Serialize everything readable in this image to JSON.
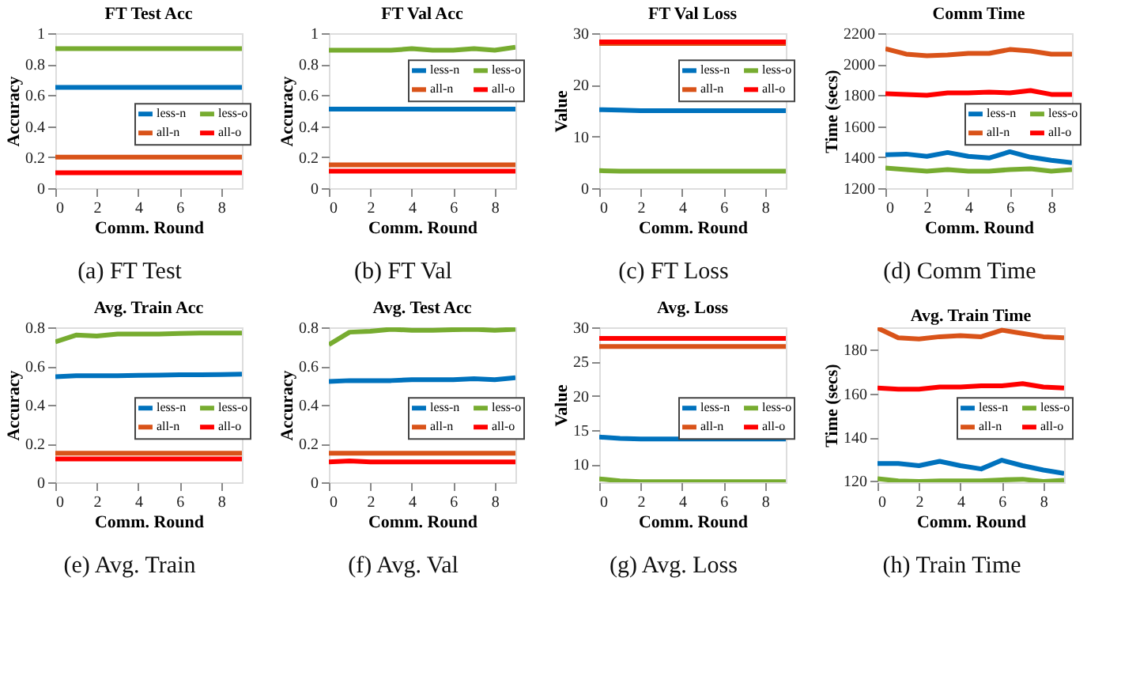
{
  "chart_data": [
    {
      "type": "line",
      "title": "FT Test Acc",
      "xlabel": "Comm. Round",
      "ylabel": "Accuracy",
      "annotations": [
        "(a) FT Test"
      ],
      "legend": "right",
      "x": [
        0,
        1,
        2,
        3,
        4,
        5,
        6,
        7,
        8,
        9
      ],
      "xlim": [
        0,
        9
      ],
      "xticks": [
        0,
        2,
        4,
        6,
        8
      ],
      "ylim": [
        0,
        1
      ],
      "yticks": [
        0,
        0.2,
        0.4,
        0.6,
        0.8,
        1
      ],
      "series": [
        {
          "name": "less-n",
          "color": "#0072bd",
          "values": [
            0.65,
            0.65,
            0.65,
            0.65,
            0.65,
            0.65,
            0.65,
            0.65,
            0.65,
            0.65
          ]
        },
        {
          "name": "less-o",
          "color": "#77ac30",
          "values": [
            0.9,
            0.9,
            0.9,
            0.9,
            0.9,
            0.9,
            0.9,
            0.9,
            0.9,
            0.9
          ]
        },
        {
          "name": "all-n",
          "color": "#d95319",
          "values": [
            0.2,
            0.2,
            0.2,
            0.2,
            0.2,
            0.2,
            0.2,
            0.2,
            0.2,
            0.2
          ]
        },
        {
          "name": "all-o",
          "color": "#ff0000",
          "values": [
            0.1,
            0.1,
            0.1,
            0.1,
            0.1,
            0.1,
            0.1,
            0.1,
            0.1,
            0.1
          ]
        }
      ]
    },
    {
      "type": "line",
      "title": "FT Val Acc",
      "xlabel": "Comm. Round",
      "ylabel": "Accuracy",
      "annotations": [
        "(b) FT Val"
      ],
      "legend": "top right",
      "x": [
        0,
        1,
        2,
        3,
        4,
        5,
        6,
        7,
        8,
        9
      ],
      "xlim": [
        0,
        9
      ],
      "xticks": [
        0,
        2,
        4,
        6,
        8
      ],
      "ylim": [
        0,
        1
      ],
      "yticks": [
        0,
        0.2,
        0.4,
        0.6,
        0.8,
        1
      ],
      "series": [
        {
          "name": "less-n",
          "color": "#0072bd",
          "values": [
            0.51,
            0.51,
            0.51,
            0.51,
            0.51,
            0.51,
            0.51,
            0.51,
            0.51,
            0.51
          ]
        },
        {
          "name": "less-o",
          "color": "#77ac30",
          "values": [
            0.89,
            0.89,
            0.89,
            0.89,
            0.9,
            0.89,
            0.89,
            0.9,
            0.89,
            0.91
          ]
        },
        {
          "name": "all-n",
          "color": "#d95319",
          "values": [
            0.15,
            0.15,
            0.15,
            0.15,
            0.15,
            0.15,
            0.15,
            0.15,
            0.15,
            0.15
          ]
        },
        {
          "name": "all-o",
          "color": "#ff0000",
          "values": [
            0.11,
            0.11,
            0.11,
            0.11,
            0.11,
            0.11,
            0.11,
            0.11,
            0.11,
            0.11
          ]
        }
      ]
    },
    {
      "type": "line",
      "title": "FT Val Loss",
      "xlabel": "Comm. Round",
      "ylabel": "Value",
      "annotations": [
        "(c) FT Loss"
      ],
      "legend": "top right",
      "x": [
        0,
        1,
        2,
        3,
        4,
        5,
        6,
        7,
        8,
        9
      ],
      "xlim": [
        0,
        9
      ],
      "xticks": [
        0,
        2,
        4,
        6,
        8
      ],
      "ylim": [
        0,
        30
      ],
      "yticks": [
        0,
        10,
        20,
        30
      ],
      "series": [
        {
          "name": "less-n",
          "color": "#0072bd",
          "values": [
            15.2,
            15.1,
            15,
            15,
            15,
            15,
            15,
            15,
            15,
            15
          ]
        },
        {
          "name": "less-o",
          "color": "#77ac30",
          "values": [
            3.4,
            3.3,
            3.3,
            3.3,
            3.3,
            3.3,
            3.3,
            3.3,
            3.3,
            3.3
          ]
        },
        {
          "name": "all-n",
          "color": "#d95319",
          "values": [
            28,
            28,
            28,
            28,
            28,
            28,
            28,
            28,
            28,
            28
          ]
        },
        {
          "name": "all-o",
          "color": "#ff0000",
          "values": [
            28.3,
            28.3,
            28.3,
            28.3,
            28.3,
            28.3,
            28.3,
            28.3,
            28.3,
            28.3
          ]
        }
      ]
    },
    {
      "type": "line",
      "title": "Comm Time",
      "xlabel": "Comm. Round",
      "ylabel": "Time (secs)",
      "annotations": [
        "(d) Comm Time"
      ],
      "legend": "right",
      "x": [
        0,
        1,
        2,
        3,
        4,
        5,
        6,
        7,
        8,
        9
      ],
      "xlim": [
        0,
        9
      ],
      "xticks": [
        0,
        2,
        4,
        6,
        8
      ],
      "ylim": [
        1200,
        2200
      ],
      "yticks": [
        1200,
        1400,
        1600,
        1800,
        2000,
        2200
      ],
      "series": [
        {
          "name": "less-n",
          "color": "#0072bd",
          "values": [
            1415,
            1420,
            1405,
            1430,
            1405,
            1395,
            1435,
            1400,
            1380,
            1365
          ]
        },
        {
          "name": "less-o",
          "color": "#77ac30",
          "values": [
            1330,
            1320,
            1310,
            1320,
            1310,
            1310,
            1320,
            1325,
            1310,
            1320
          ]
        },
        {
          "name": "all-n",
          "color": "#d95319",
          "values": [
            2100,
            2065,
            2055,
            2060,
            2070,
            2070,
            2095,
            2085,
            2065,
            2065
          ]
        },
        {
          "name": "all-o",
          "color": "#ff0000",
          "values": [
            1810,
            1805,
            1800,
            1815,
            1815,
            1820,
            1815,
            1830,
            1805,
            1805
          ]
        }
      ]
    },
    {
      "type": "line",
      "title": "Avg. Train Acc",
      "xlabel": "Comm. Round",
      "ylabel": "Accuracy",
      "annotations": [
        "(e) Avg. Train"
      ],
      "legend": "right",
      "x": [
        0,
        1,
        2,
        3,
        4,
        5,
        6,
        7,
        8,
        9
      ],
      "xlim": [
        0,
        9
      ],
      "xticks": [
        0,
        2,
        4,
        6,
        8
      ],
      "ylim": [
        0,
        0.8
      ],
      "yticks": [
        0,
        0.2,
        0.4,
        0.6,
        0.8
      ],
      "series": [
        {
          "name": "less-n",
          "color": "#0072bd",
          "values": [
            0.545,
            0.55,
            0.55,
            0.55,
            0.552,
            0.553,
            0.555,
            0.555,
            0.556,
            0.558
          ]
        },
        {
          "name": "less-o",
          "color": "#77ac30",
          "values": [
            0.725,
            0.76,
            0.755,
            0.765,
            0.765,
            0.765,
            0.768,
            0.77,
            0.77,
            0.77
          ]
        },
        {
          "name": "all-n",
          "color": "#d95319",
          "values": [
            0.15,
            0.15,
            0.15,
            0.15,
            0.15,
            0.15,
            0.15,
            0.15,
            0.15,
            0.15
          ]
        },
        {
          "name": "all-o",
          "color": "#ff0000",
          "values": [
            0.12,
            0.12,
            0.12,
            0.12,
            0.12,
            0.12,
            0.12,
            0.12,
            0.12,
            0.12
          ]
        }
      ]
    },
    {
      "type": "line",
      "title": "Avg. Test Acc",
      "xlabel": "Comm. Round",
      "ylabel": "Accuracy",
      "annotations": [
        "(f) Avg. Val"
      ],
      "legend": "right",
      "x": [
        0,
        1,
        2,
        3,
        4,
        5,
        6,
        7,
        8,
        9
      ],
      "xlim": [
        0,
        9
      ],
      "xticks": [
        0,
        2,
        4,
        6,
        8
      ],
      "ylim": [
        0,
        0.8
      ],
      "yticks": [
        0,
        0.2,
        0.4,
        0.6,
        0.8
      ],
      "series": [
        {
          "name": "less-n",
          "color": "#0072bd",
          "values": [
            0.52,
            0.525,
            0.525,
            0.525,
            0.53,
            0.53,
            0.53,
            0.535,
            0.53,
            0.54
          ]
        },
        {
          "name": "less-o",
          "color": "#77ac30",
          "values": [
            0.71,
            0.775,
            0.78,
            0.79,
            0.785,
            0.785,
            0.788,
            0.79,
            0.785,
            0.79
          ]
        },
        {
          "name": "all-n",
          "color": "#d95319",
          "values": [
            0.15,
            0.15,
            0.15,
            0.15,
            0.15,
            0.15,
            0.15,
            0.15,
            0.15,
            0.15
          ]
        },
        {
          "name": "all-o",
          "color": "#ff0000",
          "values": [
            0.105,
            0.11,
            0.105,
            0.105,
            0.105,
            0.105,
            0.105,
            0.105,
            0.105,
            0.105
          ]
        }
      ]
    },
    {
      "type": "line",
      "title": "Avg. Loss",
      "xlabel": "Comm. Round",
      "ylabel": "Value",
      "annotations": [
        "(g) Avg. Loss"
      ],
      "legend": "right",
      "x": [
        0,
        1,
        2,
        3,
        4,
        5,
        6,
        7,
        8,
        9
      ],
      "xlim": [
        0,
        9
      ],
      "xticks": [
        0,
        2,
        4,
        6,
        8
      ],
      "ylim": [
        7.4,
        30
      ],
      "yticks": [
        10,
        15,
        20,
        25,
        30
      ],
      "series": [
        {
          "name": "less-n",
          "color": "#0072bd",
          "values": [
            14,
            13.8,
            13.7,
            13.7,
            13.7,
            13.7,
            13.7,
            13.7,
            13.7,
            13.7
          ]
        },
        {
          "name": "less-o",
          "color": "#77ac30",
          "values": [
            7.9,
            7.6,
            7.5,
            7.5,
            7.5,
            7.5,
            7.5,
            7.5,
            7.5,
            7.5
          ]
        },
        {
          "name": "all-n",
          "color": "#d95319",
          "values": [
            27.2,
            27.2,
            27.2,
            27.2,
            27.2,
            27.2,
            27.2,
            27.2,
            27.2,
            27.2
          ]
        },
        {
          "name": "all-o",
          "color": "#ff0000",
          "values": [
            28.4,
            28.4,
            28.4,
            28.4,
            28.4,
            28.4,
            28.4,
            28.4,
            28.4,
            28.4
          ]
        }
      ]
    },
    {
      "type": "line",
      "title": "Avg. Train Time",
      "xlabel": "Comm. Round",
      "ylabel": "Time (secs)",
      "annotations": [
        "(h) Train Time"
      ],
      "legend": "right",
      "x": [
        0,
        1,
        2,
        3,
        4,
        5,
        6,
        7,
        8,
        9
      ],
      "xlim": [
        0,
        9
      ],
      "xticks": [
        0,
        2,
        4,
        6,
        8
      ],
      "ylim": [
        119.4,
        190.3
      ],
      "yticks": [
        120,
        140,
        160,
        180
      ],
      "series": [
        {
          "name": "less-n",
          "color": "#0072bd",
          "values": [
            128,
            128,
            127,
            129,
            127,
            125.5,
            129.5,
            127,
            125,
            123.5
          ]
        },
        {
          "name": "less-o",
          "color": "#77ac30",
          "values": [
            121,
            120,
            119.8,
            120,
            120,
            120,
            120.5,
            120.8,
            119.8,
            120.3
          ]
        },
        {
          "name": "all-n",
          "color": "#d95319",
          "values": [
            190,
            185.5,
            185,
            186,
            186.5,
            186,
            189,
            187.5,
            186,
            185.5
          ]
        },
        {
          "name": "all-o",
          "color": "#ff0000",
          "values": [
            162.5,
            162,
            162,
            163,
            163,
            163.5,
            163.5,
            164.5,
            163,
            162.5
          ]
        }
      ]
    }
  ]
}
